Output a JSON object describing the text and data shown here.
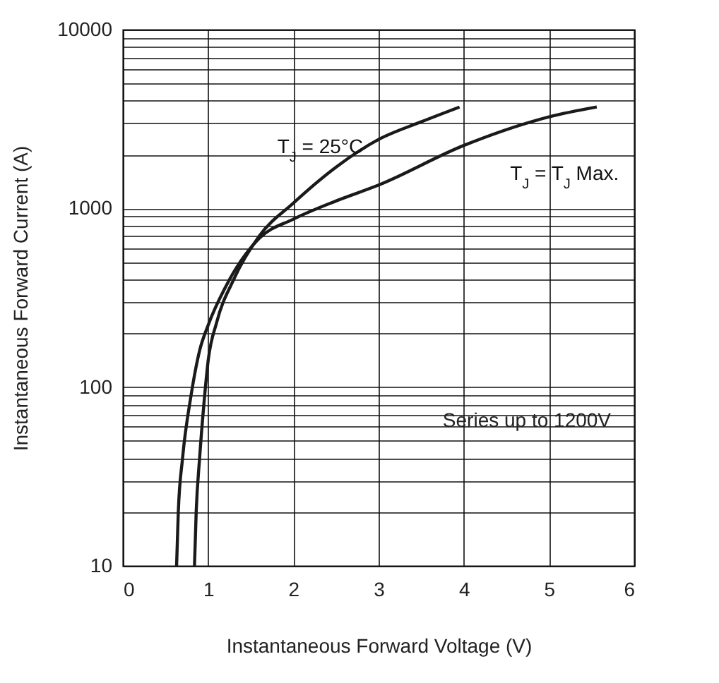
{
  "chart_data": {
    "type": "line",
    "xlabel": "Instantaneous Forward Voltage (V)",
    "ylabel": "Instantaneous Forward Current (A)",
    "log": "y",
    "grid": true,
    "marker": "none",
    "line_style": "solid",
    "xlim": [
      0,
      6
    ],
    "xticks": [
      0,
      1,
      2,
      3,
      4,
      5,
      6
    ],
    "ylim": [
      10,
      10000
    ],
    "yticks": [
      10,
      {
        "value": 20,
        "label": null
      },
      {
        "value": 30,
        "label": null
      },
      {
        "value": 40,
        "label": null
      },
      {
        "value": 50,
        "label": null
      },
      {
        "value": 60,
        "label": null
      },
      {
        "value": 70,
        "label": null
      },
      {
        "value": 80,
        "label": null
      },
      {
        "value": 90,
        "label": null
      },
      100,
      {
        "value": 200,
        "label": null
      },
      {
        "value": 300,
        "label": null
      },
      {
        "value": 400,
        "label": null
      },
      {
        "value": 500,
        "label": null
      },
      {
        "value": 600,
        "label": null
      },
      {
        "value": 700,
        "label": null
      },
      {
        "value": 800,
        "label": null
      },
      {
        "value": 900,
        "label": null
      },
      1000,
      {
        "value": 2000,
        "label": null
      },
      {
        "value": 3000,
        "label": null
      },
      {
        "value": 4000,
        "label": null
      },
      {
        "value": 5000,
        "label": null
      },
      {
        "value": 6000,
        "label": null
      },
      {
        "value": 7000,
        "label": null
      },
      {
        "value": 8000,
        "label": null
      },
      {
        "value": 9000,
        "label": null
      },
      10000
    ],
    "series": [
      {
        "name": "T$_{J}$ = 25°C",
        "color": "#1a1a1a",
        "x": [
          0.84,
          0.86,
          0.9,
          0.95,
          1.0,
          1.1,
          1.3,
          1.6,
          2,
          2.5,
          3,
          3.5,
          3.95
        ],
        "values": [
          10,
          20,
          40,
          80,
          140,
          230,
          400,
          700,
          1070,
          1700,
          2430,
          3050,
          3690
        ]
      },
      {
        "name": "T$_{J}$ = T$_{J}$ Max.",
        "color": "#1a1a1a",
        "x": [
          0.63,
          0.65,
          0.7,
          0.8,
          0.9,
          1.0,
          1.2,
          1.6,
          2,
          2.5,
          3,
          4,
          5,
          5.56
        ],
        "values": [
          10,
          20,
          40,
          90,
          160,
          222,
          360,
          680,
          870,
          1100,
          1350,
          2250,
          3250,
          3690
        ]
      }
    ],
    "annotations": [
      "Series up to 1200V"
    ]
  }
}
